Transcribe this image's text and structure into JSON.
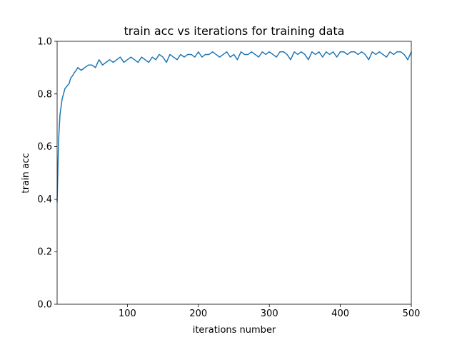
{
  "chart_data": {
    "type": "line",
    "title": "train acc vs iterations for training data",
    "xlabel": "iterations number",
    "ylabel": "train acc",
    "xlim": [
      1,
      500
    ],
    "ylim": [
      0.0,
      1.0
    ],
    "xticks": [
      100,
      200,
      300,
      400,
      500
    ],
    "yticks": [
      0.0,
      0.2,
      0.4,
      0.6,
      0.8,
      1.0
    ],
    "xtick_labels": [
      "100",
      "200",
      "300",
      "400",
      "500"
    ],
    "ytick_labels": [
      "0.0",
      "0.2",
      "0.4",
      "0.6",
      "0.8",
      "1.0"
    ],
    "grid": false,
    "series": [
      {
        "color": "#1f77b4",
        "x": [
          1,
          3,
          5,
          8,
          10,
          12,
          15,
          18,
          20,
          23,
          25,
          28,
          30,
          35,
          40,
          45,
          50,
          55,
          60,
          65,
          70,
          75,
          80,
          85,
          90,
          95,
          100,
          105,
          110,
          115,
          120,
          125,
          130,
          135,
          140,
          145,
          150,
          155,
          160,
          165,
          170,
          175,
          180,
          185,
          190,
          195,
          200,
          205,
          210,
          215,
          220,
          225,
          230,
          235,
          240,
          245,
          250,
          255,
          260,
          265,
          270,
          275,
          280,
          285,
          290,
          295,
          300,
          305,
          310,
          315,
          320,
          325,
          330,
          335,
          340,
          345,
          350,
          355,
          360,
          365,
          370,
          375,
          380,
          385,
          390,
          395,
          400,
          405,
          410,
          415,
          420,
          425,
          430,
          435,
          440,
          445,
          450,
          455,
          460,
          465,
          470,
          475,
          480,
          485,
          490,
          495,
          500
        ],
        "y": [
          0.39,
          0.62,
          0.72,
          0.78,
          0.8,
          0.82,
          0.83,
          0.84,
          0.86,
          0.87,
          0.88,
          0.89,
          0.9,
          0.89,
          0.9,
          0.91,
          0.91,
          0.9,
          0.93,
          0.91,
          0.92,
          0.93,
          0.92,
          0.93,
          0.94,
          0.92,
          0.93,
          0.94,
          0.93,
          0.92,
          0.94,
          0.93,
          0.92,
          0.94,
          0.93,
          0.95,
          0.94,
          0.92,
          0.95,
          0.94,
          0.93,
          0.95,
          0.94,
          0.95,
          0.95,
          0.94,
          0.96,
          0.94,
          0.95,
          0.95,
          0.96,
          0.95,
          0.94,
          0.95,
          0.96,
          0.94,
          0.95,
          0.93,
          0.96,
          0.95,
          0.95,
          0.96,
          0.95,
          0.94,
          0.96,
          0.95,
          0.96,
          0.95,
          0.94,
          0.96,
          0.96,
          0.95,
          0.93,
          0.96,
          0.95,
          0.96,
          0.95,
          0.93,
          0.96,
          0.95,
          0.96,
          0.94,
          0.96,
          0.95,
          0.96,
          0.94,
          0.96,
          0.96,
          0.95,
          0.96,
          0.96,
          0.95,
          0.96,
          0.95,
          0.93,
          0.96,
          0.95,
          0.96,
          0.95,
          0.94,
          0.96,
          0.95,
          0.96,
          0.96,
          0.95,
          0.93,
          0.96
        ]
      }
    ]
  }
}
